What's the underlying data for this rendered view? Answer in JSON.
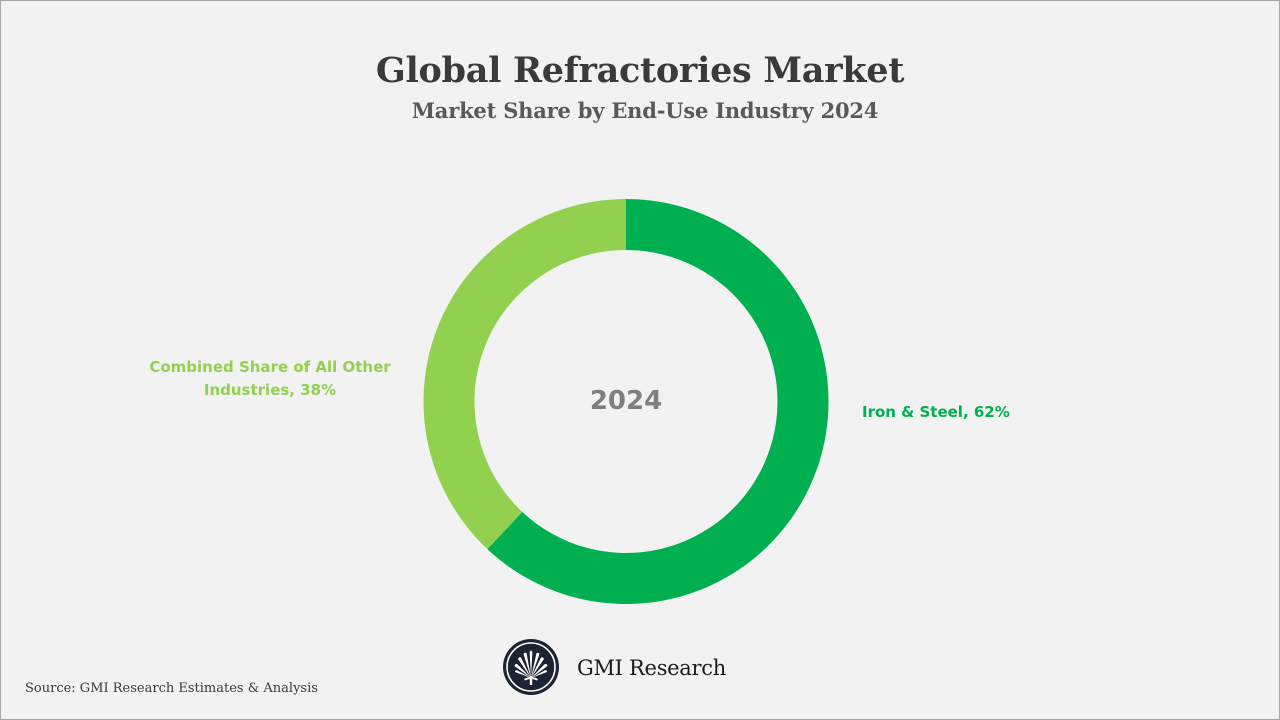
{
  "header": {
    "title": "Global Refractories Market",
    "subtitle": "Market Share by End-Use Industry 2024"
  },
  "chart": {
    "center_label": "2024",
    "labels": {
      "iron_steel": "Iron & Steel, 62%",
      "other": "Combined Share of All Other Industries, 38%"
    },
    "colors": {
      "iron_steel": "#00b050",
      "other": "#92d050",
      "background": "#f2f2f2"
    }
  },
  "footer": {
    "brand": "GMI Research",
    "source": "Source: GMI Research Estimates & Analysis"
  },
  "chart_data": {
    "type": "pie",
    "variant": "donut",
    "title": "Global Refractories Market",
    "subtitle": "Market Share by End-Use Industry 2024",
    "center_text": "2024",
    "categories": [
      "Iron & Steel",
      "Combined Share of All Other Industries"
    ],
    "values": [
      62,
      38
    ],
    "unit": "%",
    "colors": [
      "#00b050",
      "#92d050"
    ],
    "data_labels": [
      "Iron & Steel, 62%",
      "Combined Share of All Other Industries, 38%"
    ],
    "start_angle_deg": 0,
    "direction": "clockwise",
    "legend": "none (data labels beside slices)"
  }
}
